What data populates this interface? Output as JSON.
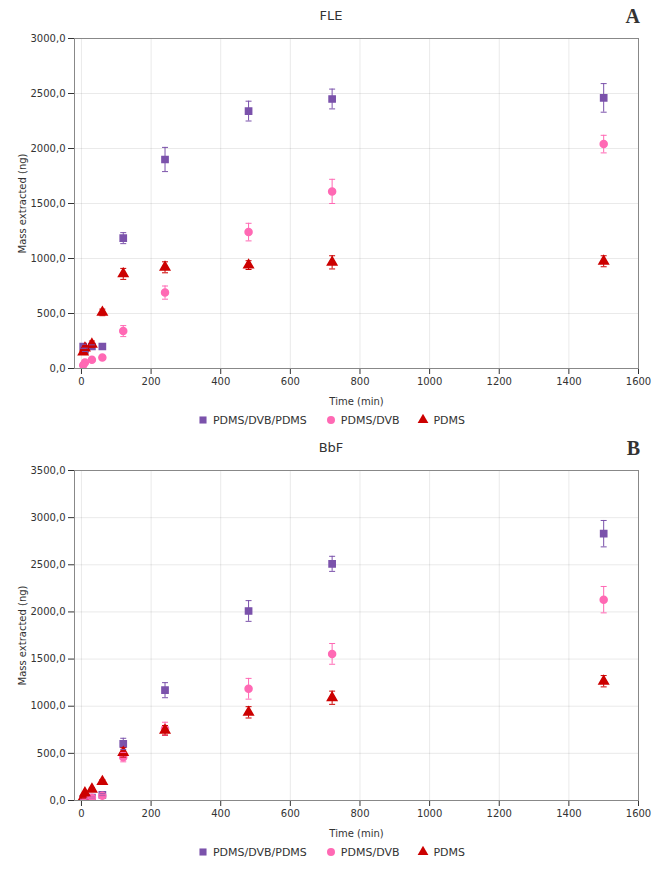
{
  "chart_data": [
    {
      "type": "scatter",
      "title": "FLE",
      "annotations": [
        "A"
      ],
      "x_label": "Time (min)",
      "y_label": "Mass extracted (ng)",
      "x": [
        5,
        10,
        30,
        60,
        120,
        240,
        480,
        720,
        1500
      ],
      "series": [
        {
          "name": "PDMS/DVB/PDMS",
          "color": "#7B52AB",
          "marker": "square",
          "values": [
            200,
            170,
            200,
            200,
            1185,
            1900,
            2340,
            2450,
            2460
          ],
          "yerr": [
            20,
            15,
            15,
            20,
            50,
            110,
            90,
            90,
            130
          ]
        },
        {
          "name": "PDMS/DVB",
          "color": "#FF69B4",
          "marker": "circle",
          "values": [
            30,
            55,
            80,
            100,
            340,
            690,
            1240,
            1610,
            2040
          ],
          "yerr": [
            5,
            8,
            10,
            15,
            50,
            60,
            80,
            110,
            80
          ]
        },
        {
          "name": "PDMS",
          "color": "#CC0000",
          "marker": "triangle",
          "values": [
            150,
            185,
            220,
            510,
            860,
            920,
            940,
            965,
            975
          ],
          "yerr": [
            20,
            20,
            30,
            30,
            50,
            50,
            40,
            60,
            50
          ]
        }
      ],
      "xlim": [
        -20,
        1600
      ],
      "xticks": [
        0,
        200,
        400,
        600,
        800,
        1000,
        1200,
        1400,
        1600
      ],
      "ylim": [
        0,
        3000
      ],
      "yticks": [
        {
          "value": 0,
          "label": "0,0"
        },
        {
          "value": 500,
          "label": "500,0"
        },
        {
          "value": 1000,
          "label": "1000,0"
        },
        {
          "value": 1500,
          "label": "1500,0"
        },
        {
          "value": 2000,
          "label": "2000,0"
        },
        {
          "value": 2500,
          "label": "2500,0"
        },
        {
          "value": 3000,
          "label": "3000,0"
        }
      ],
      "grid": true,
      "legend": "bottom"
    },
    {
      "type": "scatter",
      "title": "BbF",
      "annotations": [
        "B"
      ],
      "x_label": "Time (min)",
      "y_label": "Mass extracted (ng)",
      "x": [
        5,
        10,
        30,
        60,
        120,
        240,
        480,
        720,
        1500
      ],
      "series": [
        {
          "name": "PDMS/DVB/PDMS",
          "color": "#7B52AB",
          "marker": "square",
          "values": [
            10,
            20,
            30,
            60,
            600,
            1170,
            2010,
            2510,
            2830
          ],
          "yerr": [
            5,
            5,
            5,
            10,
            60,
            80,
            110,
            80,
            140
          ]
        },
        {
          "name": "PDMS/DVB",
          "color": "#FF69B4",
          "marker": "circle",
          "values": [
            10,
            20,
            30,
            50,
            460,
            760,
            1185,
            1555,
            2130
          ],
          "yerr": [
            5,
            5,
            5,
            10,
            50,
            70,
            110,
            110,
            140
          ]
        },
        {
          "name": "PDMS",
          "color": "#CC0000",
          "marker": "triangle",
          "values": [
            30,
            80,
            120,
            200,
            510,
            745,
            935,
            1090,
            1265
          ],
          "yerr": [
            5,
            10,
            15,
            20,
            50,
            50,
            60,
            70,
            60
          ]
        }
      ],
      "xlim": [
        -20,
        1600
      ],
      "xticks": [
        0,
        200,
        400,
        600,
        800,
        1000,
        1200,
        1400,
        1600
      ],
      "ylim": [
        0,
        3500
      ],
      "yticks": [
        {
          "value": 0,
          "label": "0,0"
        },
        {
          "value": 500,
          "label": "500,0"
        },
        {
          "value": 1000,
          "label": "1000,0"
        },
        {
          "value": 1500,
          "label": "1500,0"
        },
        {
          "value": 2000,
          "label": "2000,0"
        },
        {
          "value": 2500,
          "label": "2500,0"
        },
        {
          "value": 3000,
          "label": "3000,0"
        },
        {
          "value": 3500,
          "label": "3500,0"
        }
      ],
      "grid": true,
      "legend": "bottom"
    }
  ]
}
